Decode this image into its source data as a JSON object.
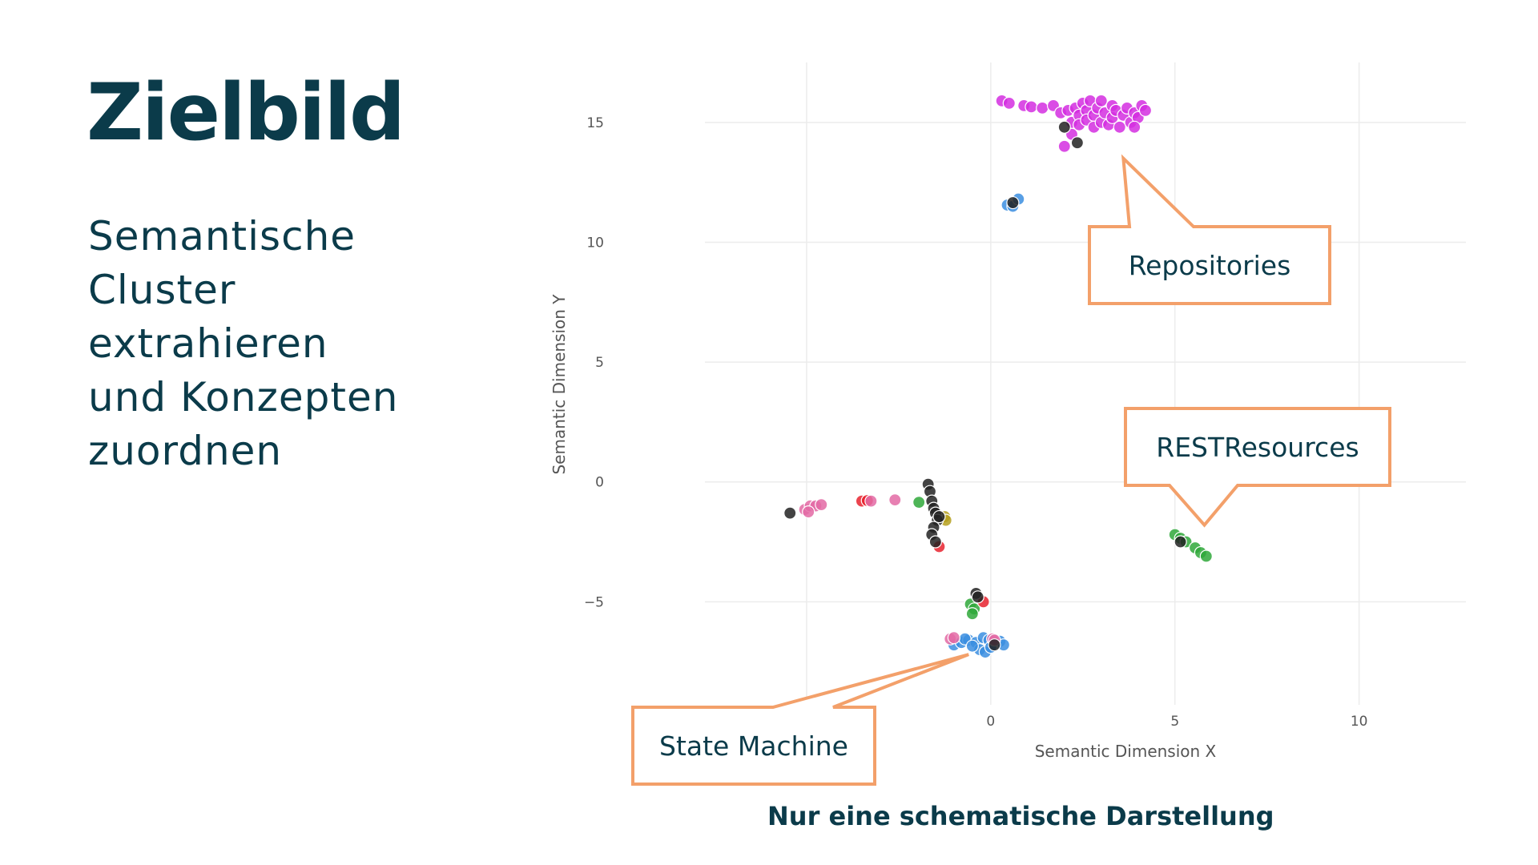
{
  "slide": {
    "title": "Zielbild",
    "subtitle_lines": [
      "Semantische",
      "Cluster",
      "extrahieren",
      "und Konzepten",
      "zuordnen"
    ],
    "footnote": "Nur eine schematische Darstellung"
  },
  "colors": {
    "text": "#0b3b4a",
    "callout_border": "#f3a06a",
    "grid": "#ececec",
    "magenta": "#d42ee0",
    "blue": "#3b8ee0",
    "green": "#2fa83a",
    "red": "#e8232f",
    "pink": "#e36aa4",
    "black": "#222222",
    "olive": "#b5a01e"
  },
  "chart_data": {
    "type": "scatter",
    "xlabel": "Semantic Dimension X",
    "ylabel": "Semantic Dimension Y",
    "xlim": [
      -9.5,
      12.9
    ],
    "ylim": [
      -9.3,
      17.5
    ],
    "xticks": [
      0,
      5,
      10
    ],
    "yticks": [
      15,
      10,
      5,
      0,
      -5
    ],
    "xgrid": [
      -5,
      0,
      5,
      10
    ],
    "ygrid": [
      15,
      10,
      5,
      0,
      -5
    ],
    "callouts": [
      {
        "label": "Repositories",
        "target": [
          3.6,
          13.5
        ]
      },
      {
        "label": "RESTResources",
        "target": [
          5.8,
          -1.8
        ]
      },
      {
        "label": "State Machine",
        "target": [
          -0.6,
          -7.2
        ]
      }
    ],
    "series": [
      {
        "name": "magenta",
        "color": "#d42ee0",
        "points": [
          [
            0.3,
            15.9
          ],
          [
            0.5,
            15.8
          ],
          [
            0.9,
            15.7
          ],
          [
            1.1,
            15.65
          ],
          [
            1.4,
            15.6
          ],
          [
            1.7,
            15.7
          ],
          [
            1.9,
            15.4
          ],
          [
            2.1,
            15.5
          ],
          [
            2.2,
            15.0
          ],
          [
            2.3,
            15.6
          ],
          [
            2.4,
            15.3
          ],
          [
            2.4,
            14.9
          ],
          [
            2.5,
            15.8
          ],
          [
            2.6,
            15.5
          ],
          [
            2.6,
            15.1
          ],
          [
            2.7,
            15.9
          ],
          [
            2.8,
            15.3
          ],
          [
            2.8,
            14.8
          ],
          [
            2.9,
            15.6
          ],
          [
            3.0,
            15.0
          ],
          [
            3.0,
            15.9
          ],
          [
            3.1,
            15.4
          ],
          [
            3.2,
            14.9
          ],
          [
            3.3,
            15.2
          ],
          [
            3.3,
            15.7
          ],
          [
            3.4,
            15.5
          ],
          [
            3.5,
            14.8
          ],
          [
            3.6,
            15.3
          ],
          [
            3.7,
            15.6
          ],
          [
            3.8,
            15.0
          ],
          [
            3.9,
            15.4
          ],
          [
            4.0,
            15.2
          ],
          [
            4.1,
            15.7
          ],
          [
            4.2,
            15.5
          ],
          [
            3.9,
            14.8
          ],
          [
            2.2,
            14.5
          ],
          [
            2.0,
            14.0
          ]
        ]
      },
      {
        "name": "blue",
        "color": "#3b8ee0",
        "points": [
          [
            0.45,
            11.55
          ],
          [
            0.6,
            11.5
          ],
          [
            0.75,
            11.8
          ],
          [
            -1.0,
            -6.8
          ],
          [
            -0.8,
            -6.7
          ],
          [
            -0.6,
            -6.6
          ],
          [
            -0.4,
            -6.7
          ],
          [
            -0.2,
            -6.5
          ],
          [
            -0.05,
            -6.6
          ],
          [
            0.1,
            -6.75
          ],
          [
            0.25,
            -6.65
          ],
          [
            0.35,
            -6.8
          ],
          [
            -0.3,
            -7.0
          ],
          [
            -0.15,
            -7.1
          ],
          [
            -0.7,
            -6.55
          ],
          [
            0.0,
            -6.9
          ],
          [
            -0.5,
            -6.85
          ]
        ]
      },
      {
        "name": "green",
        "color": "#2fa83a",
        "points": [
          [
            -1.95,
            -0.85
          ],
          [
            -0.55,
            -5.1
          ],
          [
            -0.45,
            -5.3
          ],
          [
            -0.5,
            -5.5
          ],
          [
            5.0,
            -2.2
          ],
          [
            5.15,
            -2.35
          ],
          [
            5.3,
            -2.5
          ],
          [
            5.55,
            -2.75
          ],
          [
            5.7,
            -2.95
          ],
          [
            5.85,
            -3.1
          ]
        ]
      },
      {
        "name": "red",
        "color": "#e8232f",
        "points": [
          [
            -3.5,
            -0.8
          ],
          [
            -3.35,
            -0.78
          ],
          [
            -1.4,
            -2.7
          ],
          [
            -0.2,
            -5.0
          ]
        ]
      },
      {
        "name": "pink",
        "color": "#e36aa4",
        "points": [
          [
            -5.05,
            -1.15
          ],
          [
            -4.9,
            -1.0
          ],
          [
            -4.75,
            -1.0
          ],
          [
            -4.6,
            -0.95
          ],
          [
            -4.95,
            -1.25
          ],
          [
            -3.25,
            -0.8
          ],
          [
            -2.6,
            -0.75
          ],
          [
            -1.1,
            -6.55
          ],
          [
            -1.0,
            -6.5
          ],
          [
            0.05,
            -6.55
          ],
          [
            0.1,
            -6.6
          ]
        ]
      },
      {
        "name": "olive",
        "color": "#b5a01e",
        "points": [
          [
            -1.25,
            -1.45
          ],
          [
            -1.22,
            -1.6
          ]
        ]
      },
      {
        "name": "black",
        "color": "#222222",
        "points": [
          [
            -5.45,
            -1.3
          ],
          [
            -1.7,
            -0.1
          ],
          [
            -1.65,
            -0.4
          ],
          [
            -1.6,
            -0.8
          ],
          [
            -1.55,
            -1.1
          ],
          [
            -1.5,
            -1.3
          ],
          [
            -1.45,
            -1.6
          ],
          [
            -1.55,
            -1.9
          ],
          [
            -1.6,
            -2.2
          ],
          [
            -1.5,
            -2.5
          ],
          [
            -1.4,
            -1.45
          ],
          [
            -0.4,
            -4.65
          ],
          [
            -0.35,
            -4.8
          ],
          [
            0.1,
            -6.8
          ],
          [
            0.6,
            11.65
          ],
          [
            2.0,
            14.8
          ],
          [
            2.35,
            14.15
          ],
          [
            5.15,
            -2.5
          ]
        ]
      }
    ]
  }
}
